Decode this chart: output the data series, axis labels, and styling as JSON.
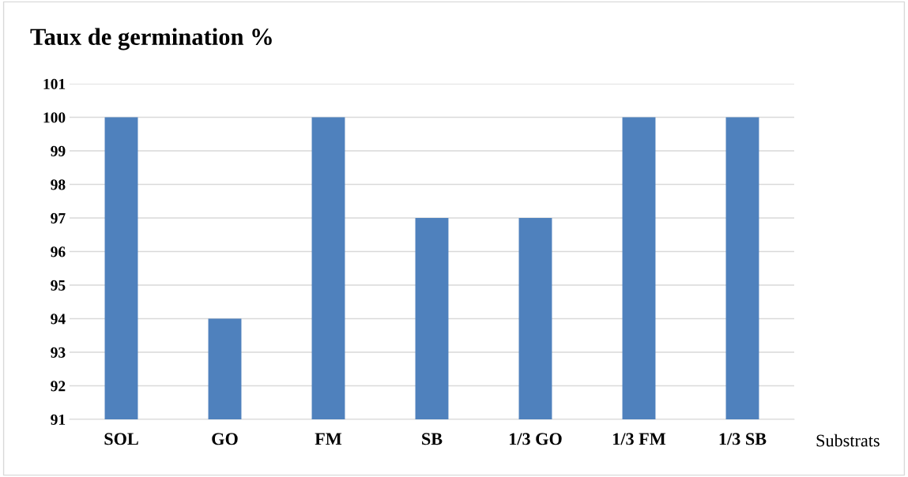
{
  "chart_data": {
    "type": "bar",
    "title": "Taux de germination %",
    "xlabel": "Substrats",
    "categories": [
      "SOL",
      "GO",
      "FM",
      "SB",
      "1/3 GO",
      "1/3 FM",
      "1/3 SB"
    ],
    "values": [
      100,
      94,
      100,
      97,
      97,
      100,
      100
    ],
    "color": "#4f81bd",
    "ylim": [
      91,
      101
    ],
    "yticks": [
      91,
      92,
      93,
      94,
      95,
      96,
      97,
      98,
      99,
      100,
      101
    ],
    "grid": "y"
  }
}
